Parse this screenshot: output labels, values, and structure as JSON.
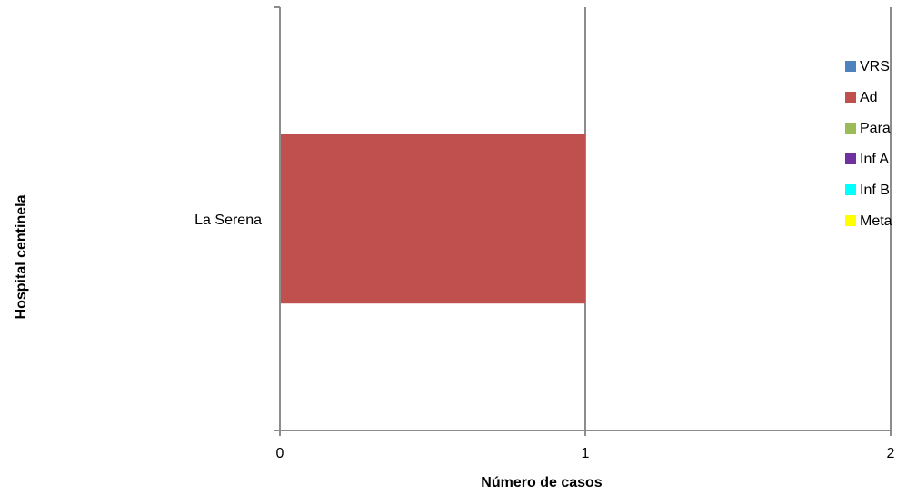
{
  "chart_data": {
    "type": "bar",
    "orientation": "horizontal",
    "stacked": true,
    "categories": [
      "La Serena"
    ],
    "series": [
      {
        "name": "VRS",
        "color": "#4F81BD",
        "values": [
          0
        ]
      },
      {
        "name": "Ad",
        "color": "#C0504D",
        "values": [
          1
        ]
      },
      {
        "name": "Para",
        "color": "#9BBB59",
        "values": [
          0
        ]
      },
      {
        "name": "Inf A",
        "color": "#7030A0",
        "values": [
          0
        ]
      },
      {
        "name": "Inf B",
        "color": "#00FFFF",
        "values": [
          0
        ]
      },
      {
        "name": "Meta",
        "color": "#FFFF00",
        "values": [
          0
        ]
      }
    ],
    "xlabel": "Número de casos",
    "ylabel": "Hospital centinela",
    "xlim": [
      0,
      2
    ],
    "xticks": [
      "0",
      "1",
      "2"
    ],
    "grid": true,
    "legend_position": "right"
  }
}
